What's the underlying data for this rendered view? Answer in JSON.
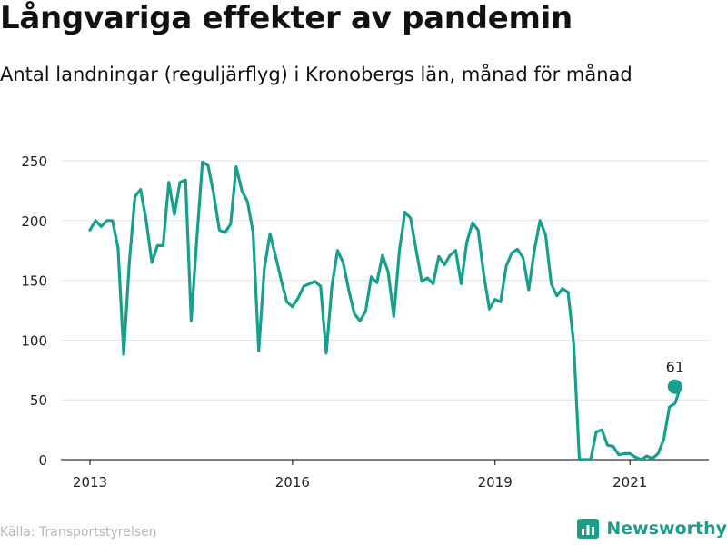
{
  "title": "Långvariga effekter av pandemin",
  "subtitle": "Antal landningar (reguljärflyg) i Kronobergs län, månad för månad",
  "source": "Källa: Transportstyrelsen",
  "brand": "Newsworthy",
  "colors": {
    "line": "#18a08e",
    "grid": "#e3e3e3",
    "axis": "#333333",
    "text": "#222222",
    "brand": "#1a9e8a"
  },
  "chart_data": {
    "type": "line",
    "title": "Långvariga effekter av pandemin",
    "subtitle": "Antal landningar (reguljärflyg) i Kronobergs län, månad för månad",
    "xlabel": "",
    "ylabel": "",
    "ylim": [
      0,
      250
    ],
    "grid": true,
    "x_start": "2013-01",
    "x_ticks": [
      {
        "label": "2013",
        "date": "2013-01"
      },
      {
        "label": "2016",
        "date": "2016-01"
      },
      {
        "label": "2019",
        "date": "2019-01"
      },
      {
        "label": "2021",
        "date": "2021-01"
      }
    ],
    "y_ticks": [
      0,
      50,
      100,
      150,
      200,
      250
    ],
    "annotation": {
      "text": "61",
      "date": "2021-09",
      "value": 61
    },
    "series": [
      {
        "name": "",
        "values": [
          192,
          200,
          195,
          200,
          200,
          177,
          88,
          165,
          220,
          226,
          200,
          165,
          179,
          179,
          232,
          205,
          232,
          234,
          116,
          185,
          249,
          246,
          222,
          192,
          190,
          197,
          245,
          225,
          216,
          190,
          91,
          160,
          189,
          170,
          150,
          132,
          128,
          135,
          145,
          147,
          149,
          145,
          89,
          145,
          175,
          165,
          142,
          122,
          116,
          124,
          153,
          148,
          171,
          157,
          120,
          175,
          207,
          202,
          175,
          149,
          152,
          147,
          170,
          163,
          171,
          175,
          147,
          182,
          198,
          192,
          155,
          126,
          134,
          132,
          162,
          173,
          176,
          169,
          142,
          175,
          200,
          188,
          147,
          137,
          143,
          140,
          97,
          0,
          0,
          0,
          23,
          25,
          12,
          11,
          4,
          5,
          5,
          2,
          0,
          3,
          1,
          5,
          17,
          44,
          47,
          61
        ]
      }
    ]
  }
}
